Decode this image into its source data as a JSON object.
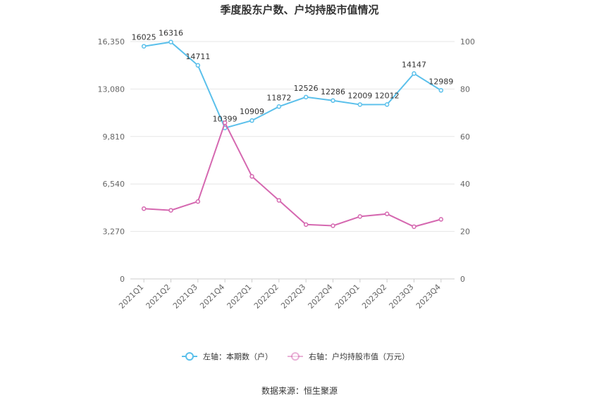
{
  "chart_data": {
    "type": "line",
    "title": "季度股东户数、户均持股市值情况",
    "categories": [
      "2021Q1",
      "2021Q2",
      "2021Q3",
      "2021Q4",
      "2022Q1",
      "2022Q2",
      "2022Q3",
      "2022Q4",
      "2023Q1",
      "2023Q2",
      "2023Q3",
      "2023Q4"
    ],
    "series": [
      {
        "name": "左轴：本期数（户）",
        "axis": "left",
        "color": "#5bc0eb",
        "values": [
          16025,
          16316,
          14711,
          10399,
          10909,
          11872,
          12526,
          12286,
          12009,
          12012,
          14147,
          12989
        ]
      },
      {
        "name": "右轴：户均持股市值（万元）",
        "axis": "right",
        "color": "#d568b0",
        "values": [
          29.6,
          28.9,
          32.6,
          65.8,
          43.2,
          33.1,
          22.9,
          22.4,
          26.3,
          27.4,
          22.0,
          25.1
        ]
      }
    ],
    "left_axis": {
      "ylim": [
        0,
        16350
      ],
      "ticks": [
        "0",
        "3,270",
        "6,540",
        "9,810",
        "13,080",
        "16,350"
      ]
    },
    "right_axis": {
      "ylim": [
        0,
        100
      ],
      "ticks": [
        "0",
        "20",
        "40",
        "60",
        "80",
        "100"
      ]
    },
    "grid": true,
    "legend_position": "bottom",
    "source": "数据来源：恒生聚源"
  }
}
